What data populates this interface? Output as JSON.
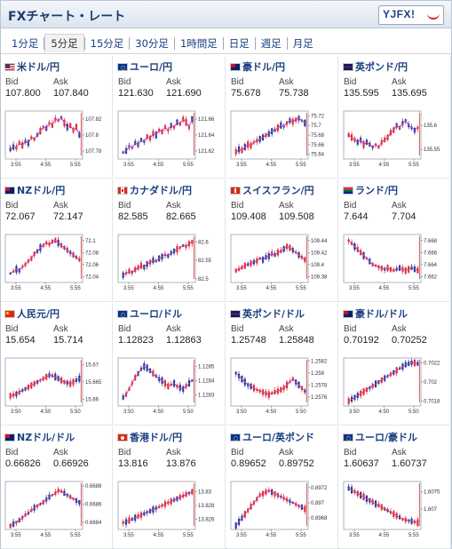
{
  "header": {
    "title": "FXチャート・レート",
    "logo": "YJFX!"
  },
  "tabs": [
    {
      "label": "1分足",
      "active": false
    },
    {
      "label": "5分足",
      "active": true
    },
    {
      "label": "15分足",
      "active": false
    },
    {
      "label": "30分足",
      "active": false
    },
    {
      "label": "1時間足",
      "active": false
    },
    {
      "label": "日足",
      "active": false
    },
    {
      "label": "週足",
      "active": false
    },
    {
      "label": "月足",
      "active": false
    }
  ],
  "labels": {
    "bid": "Bid",
    "ask": "Ask"
  },
  "colors": {
    "up": "#e03030",
    "down": "#1a3e9a",
    "ma": "#d03ab0",
    "header_text": "#1e3a6e",
    "link": "#1a3f80"
  },
  "pairs": [
    {
      "name": "米ドル/円",
      "flag": "us-flag-icon",
      "bid": "107.800",
      "ask": "107.840",
      "chart_data": {
        "type": "candlestick",
        "x_ticks": [
          "3:55",
          "4:55",
          "5:55"
        ],
        "y_ticks": [
          "107.82",
          "107.8",
          "107.78"
        ],
        "ylim": [
          107.77,
          107.83
        ],
        "trend": [
          107.782,
          107.785,
          107.784,
          107.79,
          107.787,
          107.792,
          107.79,
          107.797,
          107.795,
          107.8,
          107.805,
          107.81,
          107.808,
          107.815,
          107.812,
          107.82,
          107.818,
          107.822,
          107.815,
          107.81,
          107.812,
          107.806,
          107.81,
          107.8
        ]
      }
    },
    {
      "name": "ユーロ/円",
      "flag": "eu-flag-icon",
      "bid": "121.630",
      "ask": "121.690",
      "chart_data": {
        "type": "candlestick",
        "x_ticks": [
          "3:55",
          "4:55",
          "5:55"
        ],
        "y_ticks": [
          "121.66",
          "121.64",
          "121.62"
        ],
        "ylim": [
          121.61,
          121.67
        ],
        "trend": [
          121.618,
          121.62,
          121.626,
          121.624,
          121.63,
          121.628,
          121.634,
          121.632,
          121.638,
          121.636,
          121.642,
          121.64,
          121.646,
          121.644,
          121.65,
          121.646,
          121.652,
          121.65,
          121.656,
          121.654,
          121.66,
          121.656,
          121.65,
          121.66
        ]
      }
    },
    {
      "name": "豪ドル/円",
      "flag": "au-flag-icon",
      "bid": "75.678",
      "ask": "75.738",
      "chart_data": {
        "type": "candlestick",
        "x_ticks": [
          "3:55",
          "4:55",
          "5:55"
        ],
        "y_ticks": [
          "75.72",
          "75.7",
          "75.68",
          "75.66",
          "75.64"
        ],
        "ylim": [
          75.63,
          75.73
        ],
        "trend": [
          75.645,
          75.65,
          75.648,
          75.655,
          75.66,
          75.658,
          75.665,
          75.668,
          75.672,
          75.675,
          75.68,
          75.682,
          75.688,
          75.69,
          75.695,
          75.7,
          75.698,
          75.705,
          75.71,
          75.708,
          75.712,
          75.715,
          75.71,
          75.705
        ]
      }
    },
    {
      "name": "英ポンド/円",
      "flag": "uk-flag-icon",
      "bid": "135.595",
      "ask": "135.695",
      "chart_data": {
        "type": "candlestick",
        "x_ticks": [
          "3:55",
          "4:55",
          "5:55"
        ],
        "y_ticks": [
          "135.6",
          "135.55"
        ],
        "ylim": [
          135.53,
          135.63
        ],
        "trend": [
          135.58,
          135.575,
          135.57,
          135.565,
          135.57,
          135.56,
          135.565,
          135.56,
          135.555,
          135.56,
          135.555,
          135.565,
          135.57,
          135.575,
          135.585,
          135.59,
          135.6,
          135.595,
          135.605,
          135.61,
          135.6,
          135.595,
          135.59,
          135.595
        ]
      }
    },
    {
      "name": "NZドル/円",
      "flag": "nz-flag-icon",
      "bid": "72.067",
      "ask": "72.147",
      "chart_data": {
        "type": "candlestick",
        "x_ticks": [
          "3:55",
          "4:55",
          "5:55"
        ],
        "y_ticks": [
          "72.1",
          "72.08",
          "72.06",
          "72.04"
        ],
        "ylim": [
          72.03,
          72.11
        ],
        "trend": [
          72.045,
          72.048,
          72.052,
          72.05,
          72.056,
          72.06,
          72.066,
          72.07,
          72.078,
          72.082,
          72.088,
          72.092,
          72.096,
          72.094,
          72.098,
          72.1,
          72.096,
          72.092,
          72.088,
          72.084,
          72.08,
          72.076,
          72.072,
          72.068
        ]
      }
    },
    {
      "name": "カナダドル/円",
      "flag": "ca-flag-icon",
      "bid": "82.585",
      "ask": "82.665",
      "chart_data": {
        "type": "candlestick",
        "x_ticks": [
          "3:55",
          "4:55",
          "5:55"
        ],
        "y_ticks": [
          "82.6",
          "82.55",
          "82.5"
        ],
        "ylim": [
          82.49,
          82.62
        ],
        "trend": [
          82.51,
          82.515,
          82.52,
          82.518,
          82.525,
          82.53,
          82.535,
          82.532,
          82.54,
          82.545,
          82.55,
          82.548,
          82.555,
          82.56,
          82.565,
          82.562,
          82.57,
          82.575,
          82.58,
          82.585,
          82.59,
          82.588,
          82.595,
          82.6
        ]
      }
    },
    {
      "name": "スイスフラン/円",
      "flag": "ch-flag-icon",
      "bid": "109.408",
      "ask": "109.508",
      "chart_data": {
        "type": "candlestick",
        "x_ticks": [
          "3:55",
          "4:55",
          "5:55"
        ],
        "y_ticks": [
          "109.44",
          "109.42",
          "109.4",
          "109.38"
        ],
        "ylim": [
          109.37,
          109.45
        ],
        "trend": [
          109.39,
          109.392,
          109.395,
          109.398,
          109.4,
          109.402,
          109.404,
          109.406,
          109.41,
          109.408,
          109.412,
          109.414,
          109.418,
          109.416,
          109.42,
          109.422,
          109.426,
          109.43,
          109.428,
          109.424,
          109.42,
          109.416,
          109.412,
          109.408
        ]
      }
    },
    {
      "name": "ランド/円",
      "flag": "za-flag-icon",
      "bid": "7.644",
      "ask": "7.704",
      "chart_data": {
        "type": "candlestick",
        "x_ticks": [
          "3:55",
          "4:55",
          "5:55"
        ],
        "y_ticks": [
          "7.668",
          "7.666",
          "7.664",
          "7.662"
        ],
        "ylim": [
          7.661,
          7.669
        ],
        "trend": [
          7.668,
          7.6675,
          7.667,
          7.6665,
          7.666,
          7.6655,
          7.665,
          7.6645,
          7.664,
          7.6638,
          7.6636,
          7.6634,
          7.6632,
          7.6634,
          7.6632,
          7.663,
          7.6632,
          7.6634,
          7.6632,
          7.663,
          7.6632,
          7.6634,
          7.6632,
          7.663
        ]
      }
    },
    {
      "name": "人民元/円",
      "flag": "cn-flag-icon",
      "bid": "15.654",
      "ask": "15.714",
      "chart_data": {
        "type": "candlestick",
        "x_ticks": [
          "3:50",
          "4:50",
          "5:50"
        ],
        "y_ticks": [
          "15.67",
          "15.665",
          "15.66"
        ],
        "ylim": [
          15.658,
          15.672
        ],
        "trend": [
          15.661,
          15.6612,
          15.6615,
          15.662,
          15.6625,
          15.663,
          15.6635,
          15.664,
          15.6645,
          15.665,
          15.6655,
          15.666,
          15.6665,
          15.667,
          15.6668,
          15.6665,
          15.666,
          15.6655,
          15.665,
          15.6648,
          15.6645,
          15.665,
          15.6655,
          15.666
        ]
      }
    },
    {
      "name": "ユーロ/ドル",
      "flag": "eu-us-flag-icon",
      "bid": "1.12823",
      "ask": "1.12863",
      "chart_data": {
        "type": "candlestick",
        "x_ticks": [
          "3:50",
          "4:50",
          "5:50"
        ],
        "y_ticks": [
          "1.1285",
          "1.1284",
          "1.1283"
        ],
        "ylim": [
          1.12822,
          1.12856
        ],
        "trend": [
          1.12828,
          1.1283,
          1.12834,
          1.12838,
          1.12842,
          1.12845,
          1.12848,
          1.1285,
          1.12849,
          1.12847,
          1.12845,
          1.12843,
          1.12841,
          1.1284,
          1.12838,
          1.12836,
          1.12837,
          1.12838,
          1.12836,
          1.12835,
          1.12834,
          1.12836,
          1.12838,
          1.1284
        ]
      }
    },
    {
      "name": "英ポンド/ドル",
      "flag": "uk-us-flag-icon",
      "bid": "1.25748",
      "ask": "1.25848",
      "chart_data": {
        "type": "candlestick",
        "x_ticks": [
          "3:50",
          "4:50",
          "5:50"
        ],
        "y_ticks": [
          "1.2582",
          "1.258",
          "1.2578",
          "1.2576"
        ],
        "ylim": [
          1.25745,
          1.25825
        ],
        "trend": [
          1.258,
          1.25795,
          1.2579,
          1.25785,
          1.2578,
          1.25778,
          1.25775,
          1.25772,
          1.2577,
          1.25768,
          1.25766,
          1.25764,
          1.25766,
          1.25768,
          1.2577,
          1.25772,
          1.25775,
          1.2578,
          1.25785,
          1.2579,
          1.25785,
          1.2578,
          1.25775,
          1.2577
        ]
      }
    },
    {
      "name": "豪ドル/ドル",
      "flag": "au-us-flag-icon",
      "bid": "0.70192",
      "ask": "0.70252",
      "chart_data": {
        "type": "candlestick",
        "x_ticks": [
          "3:50",
          "4:50",
          "5:50"
        ],
        "y_ticks": [
          "0.7022",
          "0.702",
          "0.7018"
        ],
        "ylim": [
          0.70175,
          0.70225
        ],
        "trend": [
          0.7018,
          0.70182,
          0.70184,
          0.70186,
          0.70188,
          0.7019,
          0.70192,
          0.70194,
          0.70196,
          0.70198,
          0.702,
          0.70202,
          0.70204,
          0.70206,
          0.70208,
          0.7021,
          0.70212,
          0.70214,
          0.70216,
          0.70218,
          0.70219,
          0.7022,
          0.7022,
          0.70219
        ]
      }
    },
    {
      "name": "NZドル/ドル",
      "flag": "nz-us-flag-icon",
      "bid": "0.66826",
      "ask": "0.66926",
      "chart_data": {
        "type": "candlestick",
        "x_ticks": [
          "3:55",
          "4:55",
          "5:55"
        ],
        "y_ticks": [
          "0.6688",
          "0.6686",
          "0.6684"
        ],
        "ylim": [
          0.66832,
          0.66885
        ],
        "trend": [
          0.66836,
          0.66838,
          0.6684,
          0.66842,
          0.66845,
          0.66848,
          0.6685,
          0.66853,
          0.66856,
          0.66858,
          0.6686,
          0.66862,
          0.66865,
          0.66868,
          0.6687,
          0.66872,
          0.66875,
          0.66874,
          0.66872,
          0.6687,
          0.66868,
          0.66866,
          0.66864,
          0.66862
        ]
      }
    },
    {
      "name": "香港ドル/円",
      "flag": "hk-flag-icon",
      "bid": "13.816",
      "ask": "13.876",
      "chart_data": {
        "type": "candlestick",
        "x_ticks": [
          "3:55",
          "4:55",
          "5:55"
        ],
        "y_ticks": [
          "13.83",
          "13.828",
          "13.826"
        ],
        "ylim": [
          13.8245,
          13.8315
        ],
        "trend": [
          13.8255,
          13.8256,
          13.8258,
          13.826,
          13.8262,
          13.8264,
          13.8266,
          13.8268,
          13.827,
          13.8272,
          13.8274,
          13.8276,
          13.8278,
          13.828,
          13.8282,
          13.8284,
          13.8286,
          13.8288,
          13.829,
          13.8292,
          13.8294,
          13.8296,
          13.8298,
          13.83
        ]
      }
    },
    {
      "name": "ユーロ/英ポンド",
      "flag": "eu-uk-flag-icon",
      "bid": "0.89652",
      "ask": "0.89752",
      "chart_data": {
        "type": "candlestick",
        "x_ticks": [
          "3:55",
          "4:55",
          "5:55"
        ],
        "y_ticks": [
          "0.8972",
          "0.897",
          "0.8968"
        ],
        "ylim": [
          0.89665,
          0.89728
        ],
        "trend": [
          0.8967,
          0.89675,
          0.8968,
          0.89685,
          0.8969,
          0.89695,
          0.897,
          0.89705,
          0.8971,
          0.89712,
          0.89714,
          0.89716,
          0.89714,
          0.89712,
          0.8971,
          0.89708,
          0.89706,
          0.89704,
          0.89702,
          0.897,
          0.89698,
          0.89696,
          0.89694,
          0.89692
        ]
      }
    },
    {
      "name": "ユーロ/豪ドル",
      "flag": "eu-au-flag-icon",
      "bid": "1.60637",
      "ask": "1.60737",
      "chart_data": {
        "type": "candlestick",
        "x_ticks": [
          "3:55",
          "4:55",
          "5:55"
        ],
        "y_ticks": [
          "1.6075",
          "1.607"
        ],
        "ylim": [
          1.6064,
          1.6078
        ],
        "trend": [
          1.6076,
          1.60755,
          1.6075,
          1.60745,
          1.6074,
          1.60735,
          1.6073,
          1.60725,
          1.6072,
          1.60715,
          1.6071,
          1.60705,
          1.607,
          1.60695,
          1.6069,
          1.60685,
          1.6068,
          1.60675,
          1.6067,
          1.60668,
          1.60666,
          1.60664,
          1.60662,
          1.6066
        ]
      }
    }
  ]
}
